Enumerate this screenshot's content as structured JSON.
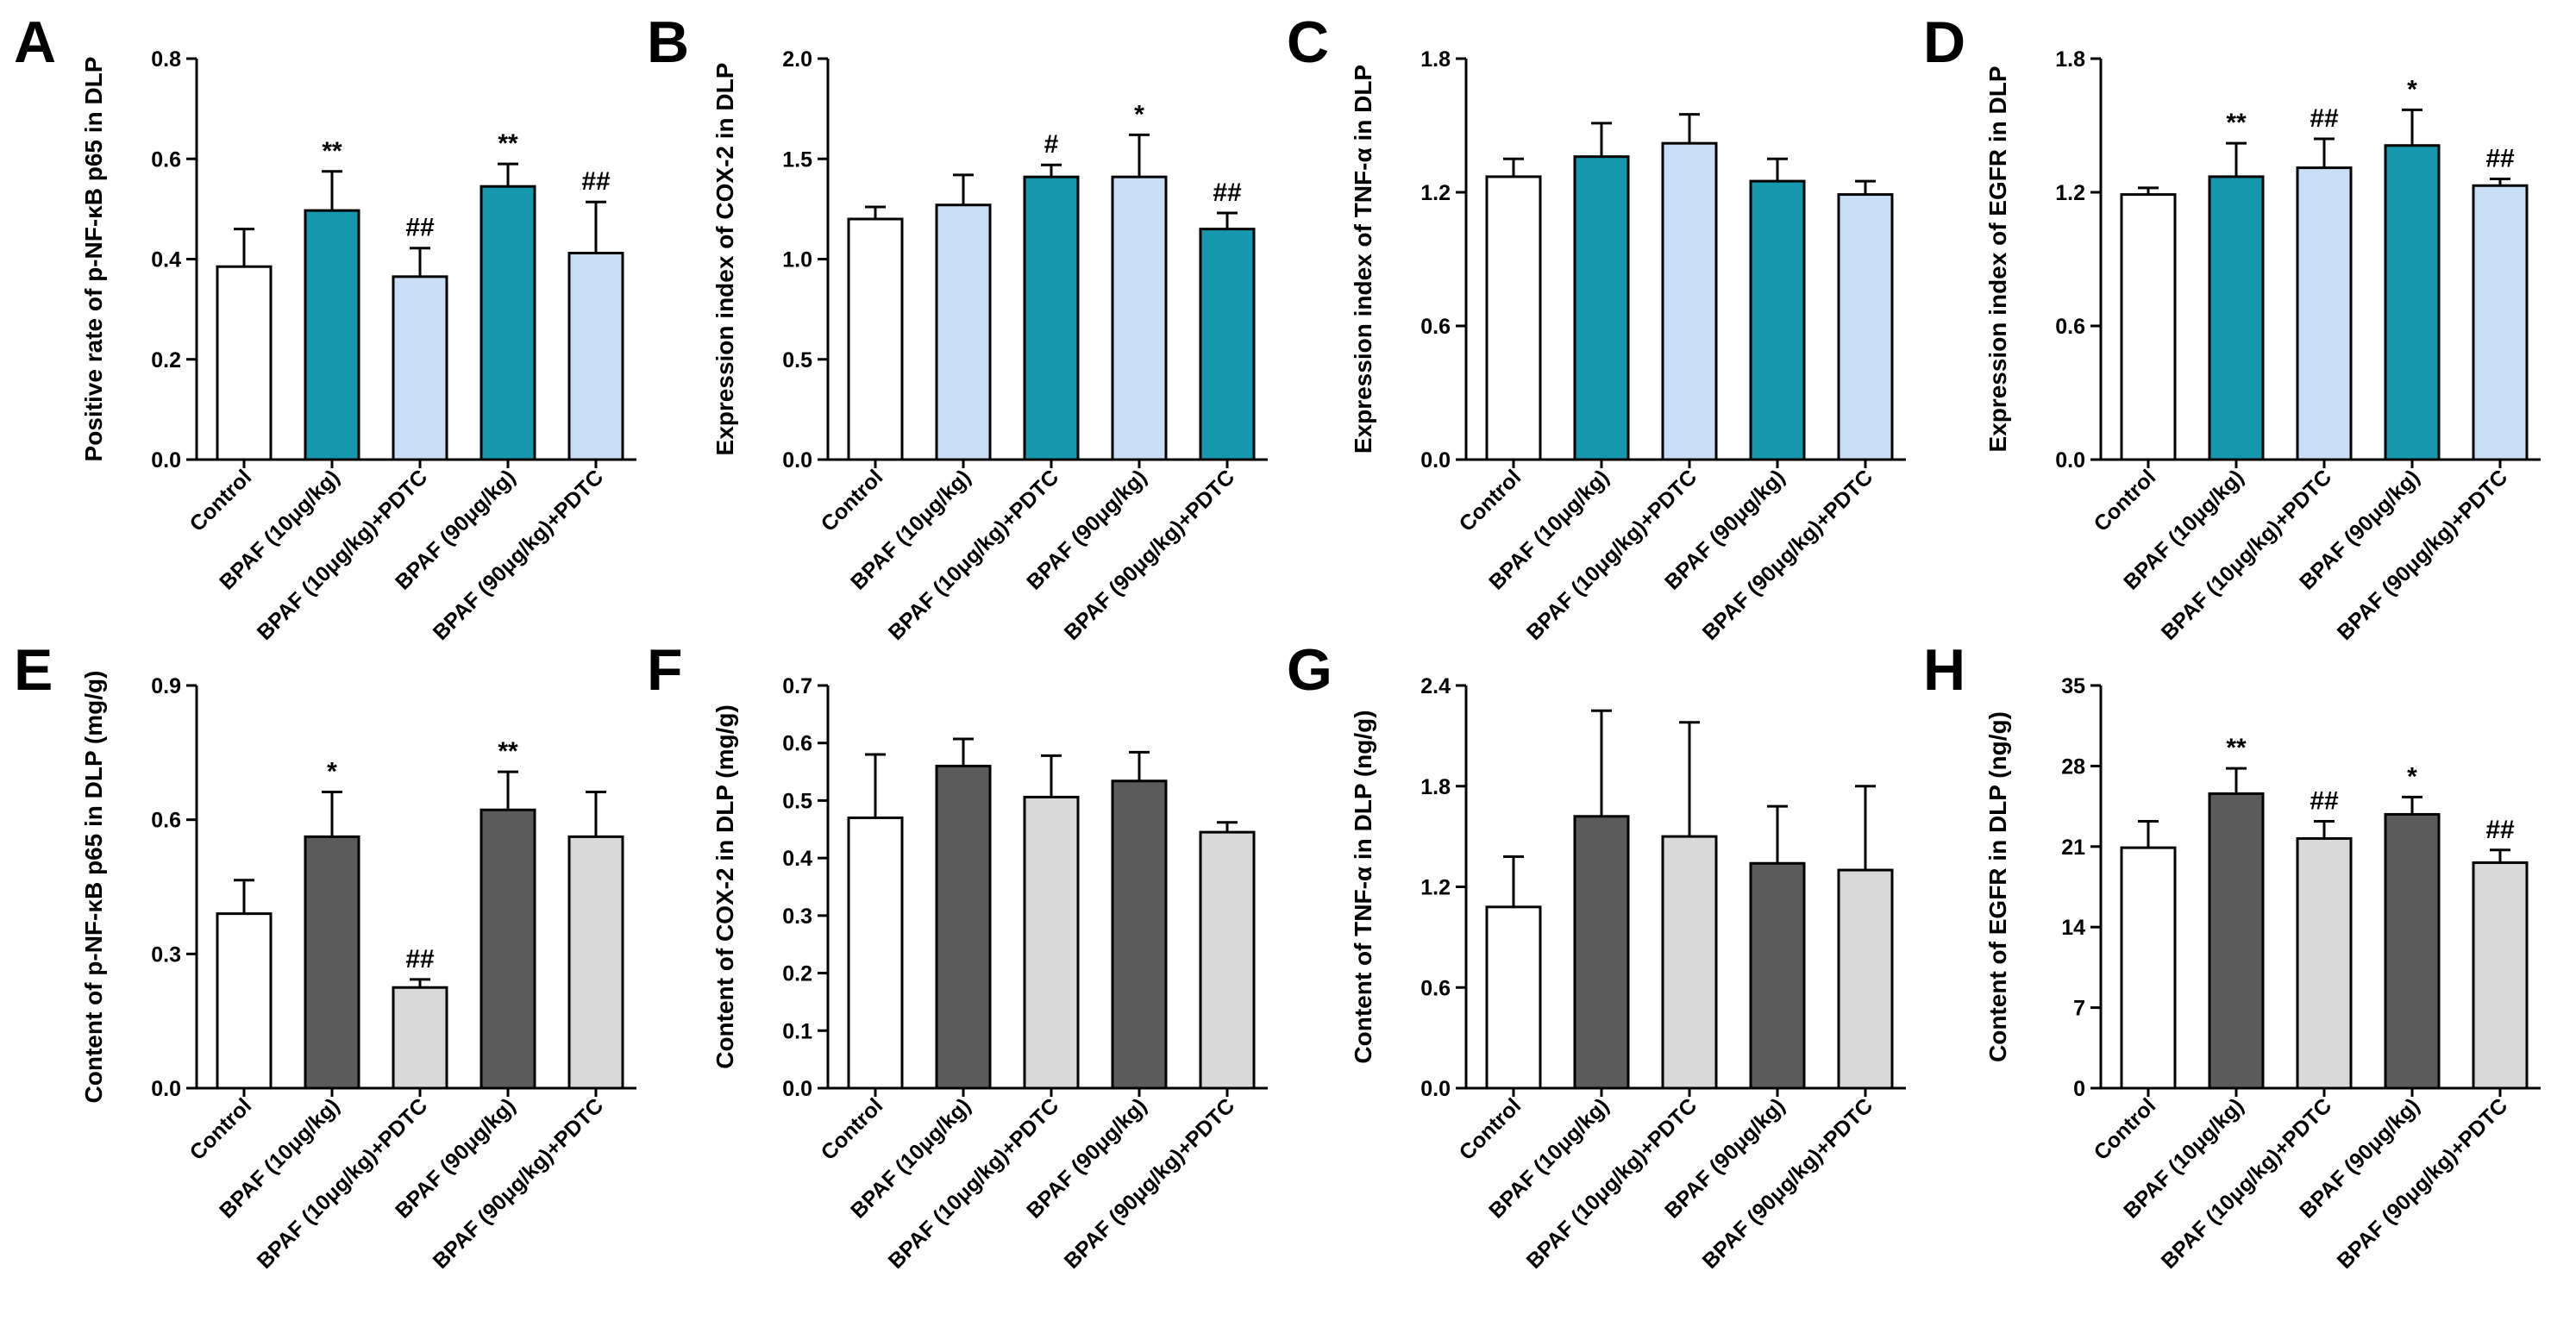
{
  "chart_data": [
    {
      "panel": "A",
      "type": "bar",
      "ylabel": "Positive rate of p-NF-κB p65 in DLP",
      "categories": [
        "Control",
        "BPAF (10μg/kg)",
        "BPAF (10μg/kg)+PDTC",
        "BPAF (90μg/kg)",
        "BPAF (90μg/kg)+PDTC"
      ],
      "values": [
        0.385,
        0.497,
        0.365,
        0.545,
        0.412
      ],
      "errors": [
        0.075,
        0.078,
        0.057,
        0.045,
        0.102
      ],
      "ylim": [
        0,
        0.8
      ],
      "yticks": [
        "0.0",
        "0.2",
        "0.4",
        "0.6",
        "0.8"
      ],
      "significance": [
        "",
        "**",
        "##",
        "**",
        "##"
      ],
      "colors": [
        "#ffffff",
        "#1597ad",
        "#c9dff7",
        "#1597ad",
        "#c9dff7"
      ]
    },
    {
      "panel": "B",
      "type": "bar",
      "ylabel": "Expression index of COX-2 in DLP",
      "categories": [
        "Control",
        "BPAF (10μg/kg)",
        "BPAF (10μg/kg)+PDTC",
        "BPAF (90μg/kg)",
        "BPAF (90μg/kg)+PDTC"
      ],
      "values": [
        1.2,
        1.27,
        1.41,
        1.41,
        1.15
      ],
      "errors": [
        0.06,
        0.15,
        0.06,
        0.21,
        0.08
      ],
      "ylim": [
        0,
        2.0
      ],
      "yticks": [
        "0.0",
        "0.5",
        "1.0",
        "1.5",
        "2.0"
      ],
      "significance": [
        "",
        "",
        "#",
        "*",
        "##"
      ],
      "colors": [
        "#ffffff",
        "#c9dff7",
        "#1597ad",
        "#c9dff7",
        "#1597ad"
      ]
    },
    {
      "panel": "C",
      "type": "bar",
      "ylabel": "Expression index of TNF-α in DLP",
      "categories": [
        "Control",
        "BPAF (10μg/kg)",
        "BPAF (10μg/kg)+PDTC",
        "BPAF (90μg/kg)",
        "BPAF (90μg/kg)+PDTC"
      ],
      "values": [
        1.27,
        1.36,
        1.42,
        1.25,
        1.19
      ],
      "errors": [
        0.08,
        0.15,
        0.13,
        0.1,
        0.06
      ],
      "ylim": [
        0,
        1.8
      ],
      "yticks": [
        "0.0",
        "0.6",
        "1.2",
        "1.8"
      ],
      "significance": [
        "",
        "",
        "",
        "",
        ""
      ],
      "colors": [
        "#ffffff",
        "#1597ad",
        "#c9dff7",
        "#1597ad",
        "#c9dff7"
      ]
    },
    {
      "panel": "D",
      "type": "bar",
      "ylabel": "Expression index of EGFR in DLP",
      "categories": [
        "Control",
        "BPAF (10μg/kg)",
        "BPAF (10μg/kg)+PDTC",
        "BPAF (90μg/kg)",
        "BPAF (90μg/kg)+PDTC"
      ],
      "values": [
        1.19,
        1.27,
        1.31,
        1.41,
        1.23
      ],
      "errors": [
        0.03,
        0.15,
        0.13,
        0.16,
        0.03
      ],
      "ylim": [
        0,
        1.8
      ],
      "yticks": [
        "0.0",
        "0.6",
        "1.2",
        "1.8"
      ],
      "significance": [
        "",
        "**",
        "##",
        "*",
        "##"
      ],
      "colors": [
        "#ffffff",
        "#1597ad",
        "#c9dff7",
        "#1597ad",
        "#c9dff7"
      ]
    },
    {
      "panel": "E",
      "type": "bar",
      "ylabel": "Content of p-NF-κB p65 in DLP (mg/g)",
      "categories": [
        "Control",
        "BPAF (10μg/kg)",
        "BPAF (10μg/kg)+PDTC",
        "BPAF (90μg/kg)",
        "BPAF (90μg/kg)+PDTC"
      ],
      "values": [
        0.39,
        0.562,
        0.225,
        0.622,
        0.562
      ],
      "errors": [
        0.075,
        0.1,
        0.018,
        0.085,
        0.1
      ],
      "ylim": [
        0,
        0.9
      ],
      "yticks": [
        "0.0",
        "0.3",
        "0.6",
        "0.9"
      ],
      "significance": [
        "",
        "*",
        "##",
        "**",
        ""
      ],
      "colors": [
        "#ffffff",
        "#5b5b5b",
        "#d9d9d9",
        "#5b5b5b",
        "#d9d9d9"
      ]
    },
    {
      "panel": "F",
      "type": "bar",
      "ylabel": "Content of COX-2 in DLP (mg/g)",
      "categories": [
        "Control",
        "BPAF (10μg/kg)",
        "BPAF (10μg/kg)+PDTC",
        "BPAF (90μg/kg)",
        "BPAF (90μg/kg)+PDTC"
      ],
      "values": [
        0.47,
        0.56,
        0.506,
        0.534,
        0.445
      ],
      "errors": [
        0.11,
        0.047,
        0.072,
        0.05,
        0.017
      ],
      "ylim": [
        0,
        0.7
      ],
      "yticks": [
        "0.0",
        "0.1",
        "0.2",
        "0.3",
        "0.4",
        "0.5",
        "0.6",
        "0.7"
      ],
      "significance": [
        "",
        "",
        "",
        "",
        ""
      ],
      "colors": [
        "#ffffff",
        "#5b5b5b",
        "#d9d9d9",
        "#5b5b5b",
        "#d9d9d9"
      ]
    },
    {
      "panel": "G",
      "type": "bar",
      "ylabel": "Content of TNF-α in DLP (ng/g)",
      "categories": [
        "Control",
        "BPAF (10μg/kg)",
        "BPAF (10μg/kg)+PDTC",
        "BPAF (90μg/kg)",
        "BPAF (90μg/kg)+PDTC"
      ],
      "values": [
        1.08,
        1.62,
        1.5,
        1.34,
        1.3
      ],
      "errors": [
        0.3,
        0.63,
        0.68,
        0.34,
        0.5
      ],
      "ylim": [
        0,
        2.4
      ],
      "yticks": [
        "0.0",
        "0.6",
        "1.2",
        "1.8",
        "2.4"
      ],
      "significance": [
        "",
        "",
        "",
        "",
        ""
      ],
      "colors": [
        "#ffffff",
        "#5b5b5b",
        "#d9d9d9",
        "#5b5b5b",
        "#d9d9d9"
      ]
    },
    {
      "panel": "H",
      "type": "bar",
      "ylabel": "Content of EGFR in DLP (ng/g)",
      "categories": [
        "Control",
        "BPAF (10μg/kg)",
        "BPAF (10μg/kg)+PDTC",
        "BPAF (90μg/kg)",
        "BPAF (90μg/kg)+PDTC"
      ],
      "values": [
        20.9,
        25.6,
        21.7,
        23.8,
        19.6
      ],
      "errors": [
        2.3,
        2.2,
        1.5,
        1.5,
        1.1
      ],
      "ylim": [
        0,
        35
      ],
      "yticks": [
        "0",
        "7",
        "14",
        "21",
        "28",
        "35"
      ],
      "significance": [
        "",
        "**",
        "##",
        "*",
        "##"
      ],
      "colors": [
        "#ffffff",
        "#5b5b5b",
        "#d9d9d9",
        "#5b5b5b",
        "#d9d9d9"
      ]
    }
  ]
}
